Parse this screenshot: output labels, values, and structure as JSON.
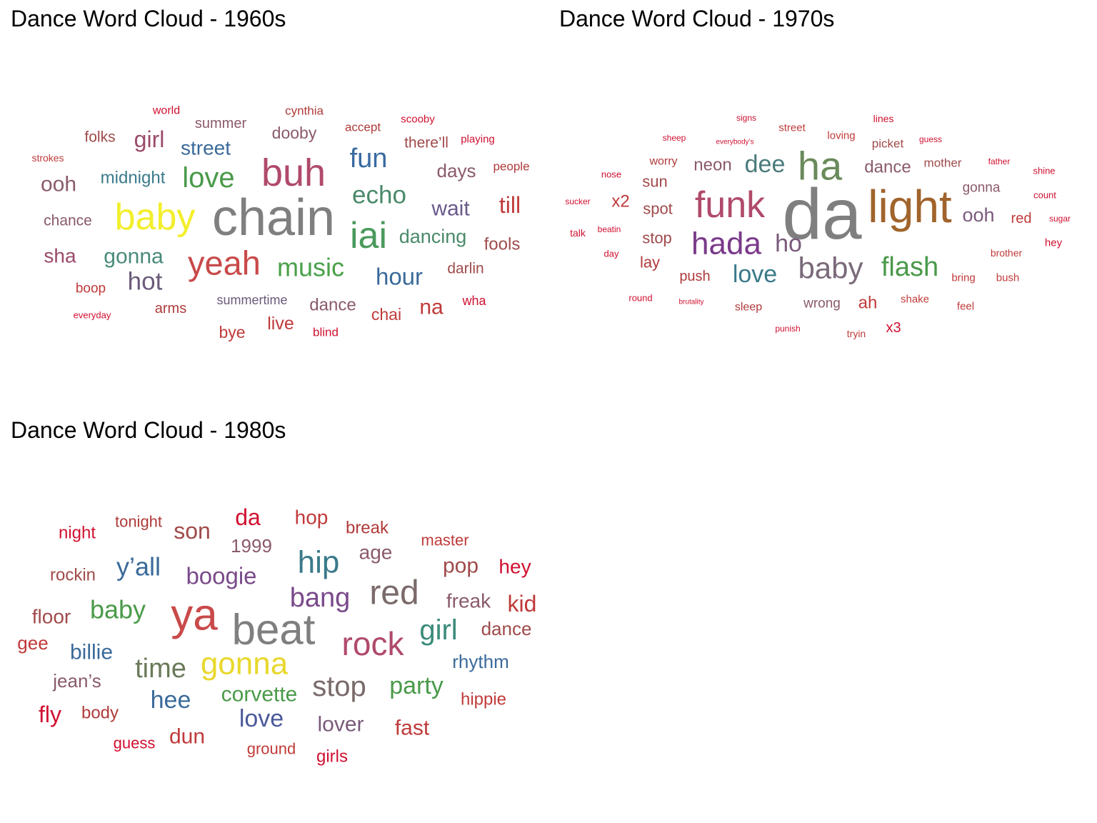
{
  "chart_data": [
    {
      "type": "wordcloud",
      "title": "Dance Word Cloud - 1960s",
      "words": [
        {
          "text": "chain",
          "color": "#7f7f7f"
        },
        {
          "text": "buh",
          "color": "#b04a6a"
        },
        {
          "text": "baby",
          "color": "#f2ee2c"
        },
        {
          "text": "yeah",
          "color": "#c94a4a"
        },
        {
          "text": "iai",
          "color": "#4a9a5c"
        },
        {
          "text": "love",
          "color": "#4a9a4a"
        },
        {
          "text": "fun",
          "color": "#3a6aa0"
        },
        {
          "text": "echo",
          "color": "#4a8a6a"
        },
        {
          "text": "music",
          "color": "#4aa04a"
        },
        {
          "text": "hour",
          "color": "#3a6a9a"
        },
        {
          "text": "hot",
          "color": "#6a5a7a"
        },
        {
          "text": "wait",
          "color": "#6a5a8a"
        },
        {
          "text": "till",
          "color": "#c03a3a"
        },
        {
          "text": "girl",
          "color": "#9a4a6a"
        },
        {
          "text": "ooh",
          "color": "#8a5a6a"
        },
        {
          "text": "gonna",
          "color": "#4a8a7a"
        },
        {
          "text": "street",
          "color": "#3a6a9a"
        },
        {
          "text": "dancing",
          "color": "#4a8a6a"
        },
        {
          "text": "na",
          "color": "#c03a3a"
        },
        {
          "text": "sha",
          "color": "#9a4a6a"
        },
        {
          "text": "days",
          "color": "#8a5a6a"
        },
        {
          "text": "fools",
          "color": "#a04a4a"
        },
        {
          "text": "midnight",
          "color": "#3a7a8a"
        },
        {
          "text": "chai",
          "color": "#c03a3a"
        },
        {
          "text": "dance",
          "color": "#8a5a6a"
        },
        {
          "text": "live",
          "color": "#c03a3a"
        },
        {
          "text": "dooby",
          "color": "#8a5a6a"
        },
        {
          "text": "there’ll",
          "color": "#a04a4a"
        },
        {
          "text": "bye",
          "color": "#c03a3a"
        },
        {
          "text": "darlin",
          "color": "#a04a4a"
        },
        {
          "text": "chance",
          "color": "#8a5a6a"
        },
        {
          "text": "summer",
          "color": "#8a5a6a"
        },
        {
          "text": "arms",
          "color": "#b03a3a"
        },
        {
          "text": "folks",
          "color": "#a04a4a"
        },
        {
          "text": "summertime",
          "color": "#6a5a7a"
        },
        {
          "text": "boop",
          "color": "#c03a3a"
        },
        {
          "text": "wha",
          "color": "#d01030"
        },
        {
          "text": "accept",
          "color": "#b03a3a"
        },
        {
          "text": "people",
          "color": "#b03a3a"
        },
        {
          "text": "blind",
          "color": "#d01030"
        },
        {
          "text": "cynthia",
          "color": "#b03a3a"
        },
        {
          "text": "playing",
          "color": "#d01030"
        },
        {
          "text": "world",
          "color": "#d01030"
        },
        {
          "text": "scooby",
          "color": "#d01030"
        },
        {
          "text": "strokes",
          "color": "#c03a3a"
        },
        {
          "text": "everyday",
          "color": "#d01030"
        }
      ]
    },
    {
      "type": "wordcloud",
      "title": "Dance Word Cloud - 1970s",
      "words": [
        {
          "text": "da",
          "color": "#7f7f7f"
        },
        {
          "text": "light",
          "color": "#a0642c"
        },
        {
          "text": "ha",
          "color": "#6a8a5a"
        },
        {
          "text": "funk",
          "color": "#b04a6a"
        },
        {
          "text": "hada",
          "color": "#7a3a8a"
        },
        {
          "text": "baby",
          "color": "#7a6a7a"
        },
        {
          "text": "flash",
          "color": "#4a9a4a"
        },
        {
          "text": "dee",
          "color": "#4a7a7a"
        },
        {
          "text": "love",
          "color": "#3a7a8a"
        },
        {
          "text": "ho",
          "color": "#7a5a7a"
        },
        {
          "text": "ooh",
          "color": "#7a5a7a"
        },
        {
          "text": "dance",
          "color": "#8a5a6a"
        },
        {
          "text": "neon",
          "color": "#8a5a6a"
        },
        {
          "text": "ah",
          "color": "#c03a3a"
        },
        {
          "text": "x2",
          "color": "#c03a3a"
        },
        {
          "text": "sun",
          "color": "#a04a4a"
        },
        {
          "text": "spot",
          "color": "#a04a4a"
        },
        {
          "text": "stop",
          "color": "#a04a4a"
        },
        {
          "text": "wrong",
          "color": "#8a5a6a"
        },
        {
          "text": "lay",
          "color": "#b03a3a"
        },
        {
          "text": "push",
          "color": "#b03a3a"
        },
        {
          "text": "gonna",
          "color": "#8a5a6a"
        },
        {
          "text": "red",
          "color": "#c03a3a"
        },
        {
          "text": "x3",
          "color": "#d01030"
        },
        {
          "text": "mother",
          "color": "#a04a4a"
        },
        {
          "text": "picket",
          "color": "#a04a4a"
        },
        {
          "text": "worry",
          "color": "#b03a3a"
        },
        {
          "text": "sleep",
          "color": "#b03a3a"
        },
        {
          "text": "shake",
          "color": "#c03a3a"
        },
        {
          "text": "loving",
          "color": "#c03a3a"
        },
        {
          "text": "street",
          "color": "#c03a3a"
        },
        {
          "text": "bring",
          "color": "#c03a3a"
        },
        {
          "text": "feel",
          "color": "#c03a3a"
        },
        {
          "text": "brother",
          "color": "#c03a3a"
        },
        {
          "text": "bush",
          "color": "#c03a3a"
        },
        {
          "text": "tryin",
          "color": "#c03a3a"
        },
        {
          "text": "lines",
          "color": "#d01030"
        },
        {
          "text": "hey",
          "color": "#d01030"
        },
        {
          "text": "shine",
          "color": "#d01030"
        },
        {
          "text": "count",
          "color": "#d01030"
        },
        {
          "text": "sugar",
          "color": "#d01030"
        },
        {
          "text": "father",
          "color": "#d01030"
        },
        {
          "text": "guess",
          "color": "#d01030"
        },
        {
          "text": "signs",
          "color": "#d01030"
        },
        {
          "text": "sheep",
          "color": "#d01030"
        },
        {
          "text": "everybody’s",
          "color": "#d01030"
        },
        {
          "text": "nose",
          "color": "#d01030"
        },
        {
          "text": "sucker",
          "color": "#d01030"
        },
        {
          "text": "talk",
          "color": "#d01030"
        },
        {
          "text": "beatin",
          "color": "#d01030"
        },
        {
          "text": "day",
          "color": "#d01030"
        },
        {
          "text": "round",
          "color": "#d01030"
        },
        {
          "text": "brutality",
          "color": "#d01030"
        },
        {
          "text": "punish",
          "color": "#d01030"
        }
      ]
    },
    {
      "type": "wordcloud",
      "title": "Dance Word Cloud - 1980s",
      "words": [
        {
          "text": "beat",
          "color": "#7f7f7f"
        },
        {
          "text": "ya",
          "color": "#c94a4a"
        },
        {
          "text": "red",
          "color": "#7a6a6a"
        },
        {
          "text": "rock",
          "color": "#b04a6a"
        },
        {
          "text": "gonna",
          "color": "#e8d82c"
        },
        {
          "text": "hip",
          "color": "#3a7a8a"
        },
        {
          "text": "stop",
          "color": "#7a6a6a"
        },
        {
          "text": "bang",
          "color": "#7a4a8a"
        },
        {
          "text": "time",
          "color": "#6a7a5a"
        },
        {
          "text": "girl",
          "color": "#3a8a7a"
        },
        {
          "text": "party",
          "color": "#4a9a4a"
        },
        {
          "text": "baby",
          "color": "#4a9a4a"
        },
        {
          "text": "boogie",
          "color": "#7a4a8a"
        },
        {
          "text": "y’all",
          "color": "#3a6a9a"
        },
        {
          "text": "hee",
          "color": "#3a6a9a"
        },
        {
          "text": "love",
          "color": "#4a5a9a"
        },
        {
          "text": "son",
          "color": "#a04a4a"
        },
        {
          "text": "age",
          "color": "#8a5a6a"
        },
        {
          "text": "da",
          "color": "#d01030"
        },
        {
          "text": "kid",
          "color": "#c03a3a"
        },
        {
          "text": "corvette",
          "color": "#4a9a4a"
        },
        {
          "text": "freak",
          "color": "#8a5a6a"
        },
        {
          "text": "lover",
          "color": "#7a5a7a"
        },
        {
          "text": "pop",
          "color": "#a04a4a"
        },
        {
          "text": "hop",
          "color": "#c03a3a"
        },
        {
          "text": "billie",
          "color": "#3a6a9a"
        },
        {
          "text": "fast",
          "color": "#c03a3a"
        },
        {
          "text": "dun",
          "color": "#c03a3a"
        },
        {
          "text": "hey",
          "color": "#d01030"
        },
        {
          "text": "floor",
          "color": "#a04a4a"
        },
        {
          "text": "fly",
          "color": "#d01030"
        },
        {
          "text": "1999",
          "color": "#8a5a6a"
        },
        {
          "text": "rhythm",
          "color": "#3a6a9a"
        },
        {
          "text": "dance",
          "color": "#a04a4a"
        },
        {
          "text": "jean’s",
          "color": "#8a5a6a"
        },
        {
          "text": "break",
          "color": "#b03a3a"
        },
        {
          "text": "rockin",
          "color": "#a04a4a"
        },
        {
          "text": "girls",
          "color": "#d01030"
        },
        {
          "text": "gee",
          "color": "#c03a3a"
        },
        {
          "text": "hippie",
          "color": "#c03a3a"
        },
        {
          "text": "body",
          "color": "#b03a3a"
        },
        {
          "text": "master",
          "color": "#c03a3a"
        },
        {
          "text": "night",
          "color": "#d01030"
        },
        {
          "text": "tonight",
          "color": "#b03a3a"
        },
        {
          "text": "ground",
          "color": "#c03a3a"
        },
        {
          "text": "guess",
          "color": "#d01030"
        }
      ]
    }
  ]
}
